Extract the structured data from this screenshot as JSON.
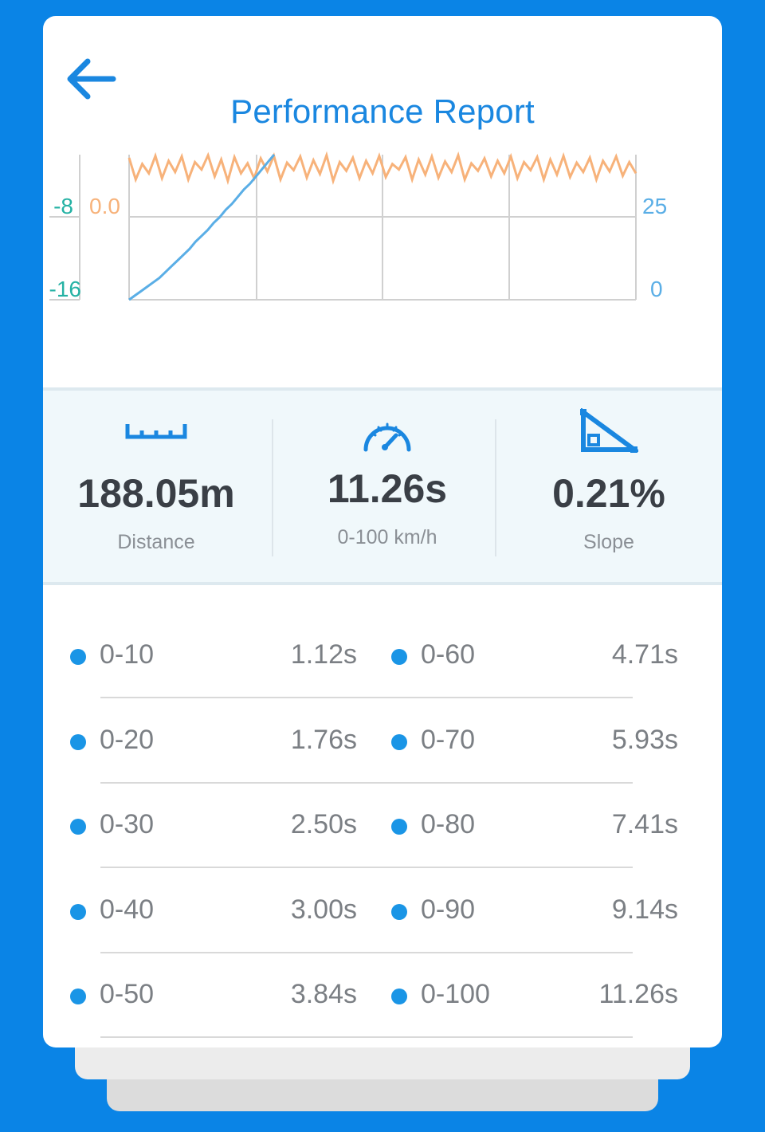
{
  "header": {
    "title": "Performance Report"
  },
  "chart_data": {
    "type": "line",
    "left_axis_ticks": [
      "-8",
      "-16"
    ],
    "left_axis_ticks_2": [
      "0.0"
    ],
    "right_axis_ticks": [
      "25",
      "0"
    ],
    "series": [
      {
        "color": "#f7b27a",
        "values": [
          0.95,
          0.6,
          0.85,
          0.7,
          0.98,
          0.62,
          0.9,
          0.72,
          0.97,
          0.6,
          0.88,
          0.76,
          0.99,
          0.65,
          0.92,
          0.58,
          0.96,
          0.7,
          0.86,
          0.62,
          0.94,
          0.73,
          0.98,
          0.6,
          0.87,
          0.75,
          0.97,
          0.63,
          0.91,
          0.69,
          0.99,
          0.58,
          0.88,
          0.74,
          0.95,
          0.62,
          0.9,
          0.7,
          0.98,
          0.64,
          0.85,
          0.76,
          0.96,
          0.6,
          0.92,
          0.68,
          0.97,
          0.63,
          0.89,
          0.72,
          0.99,
          0.6,
          0.86,
          0.74,
          0.94,
          0.65,
          0.9,
          0.7,
          0.97,
          0.62,
          0.88,
          0.75,
          0.96,
          0.6,
          0.92,
          0.68,
          0.98,
          0.64,
          0.87,
          0.72,
          0.95,
          0.6,
          0.9,
          0.73,
          0.97,
          0.66,
          0.88,
          0.7
        ]
      },
      {
        "color": "#5aaee6",
        "values": [
          0.0,
          0.03,
          0.06,
          0.09,
          0.12,
          0.15,
          0.19,
          0.23,
          0.27,
          0.31,
          0.35,
          0.4,
          0.44,
          0.48,
          0.53,
          0.57,
          0.62,
          0.66,
          0.71,
          0.76,
          0.8,
          0.85,
          0.9,
          0.95,
          1.0
        ]
      }
    ],
    "grid": true,
    "colors": {
      "left_axis": "#25b2a4",
      "left_axis_2": "#f7b27a",
      "right_axis": "#5aaee6"
    }
  },
  "stats": [
    {
      "icon": "ruler-icon",
      "value": "188.05m",
      "label": "Distance"
    },
    {
      "icon": "speedometer-icon",
      "value": "11.26s",
      "label": "0-100 km/h"
    },
    {
      "icon": "slope-icon",
      "value": "0.21%",
      "label": "Slope"
    }
  ],
  "splits": [
    {
      "left_range": "0-10",
      "left_time": "1.12s",
      "right_range": "0-60",
      "right_time": "4.71s"
    },
    {
      "left_range": "0-20",
      "left_time": "1.76s",
      "right_range": "0-70",
      "right_time": "5.93s"
    },
    {
      "left_range": "0-30",
      "left_time": "2.50s",
      "right_range": "0-80",
      "right_time": "7.41s"
    },
    {
      "left_range": "0-40",
      "left_time": "3.00s",
      "right_range": "0-90",
      "right_time": "9.14s"
    },
    {
      "left_range": "0-50",
      "left_time": "3.84s",
      "right_range": "0-100",
      "right_time": "11.26s"
    }
  ],
  "colors": {
    "background": "#0a84e6",
    "accent": "#1a87e0",
    "dot": "#1a95e6"
  }
}
